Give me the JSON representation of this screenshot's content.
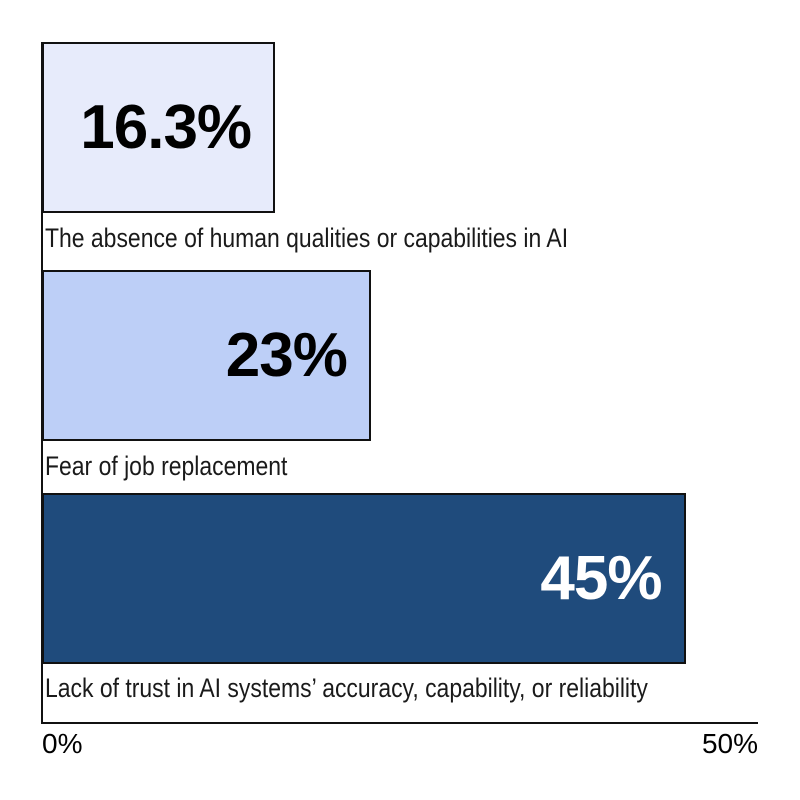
{
  "chart_data": {
    "type": "bar",
    "orientation": "horizontal",
    "title": "",
    "categories": [
      "The absence of human qualities or capabilities in AI",
      "Fear of job replacement",
      "Lack of trust in AI systems’ accuracy, capability, or reliability"
    ],
    "values": [
      16.3,
      23,
      45
    ],
    "value_labels": [
      "16.3%",
      "23%",
      "45%"
    ],
    "xlim": [
      0,
      50
    ],
    "x_tick_labels": [
      "0%",
      "50%"
    ],
    "grid": false,
    "legend": false,
    "bar_colors": [
      "#e7ebfb",
      "#bdcff7",
      "#1f4b7c"
    ],
    "bar_border_color": "#111111",
    "value_label_colors": [
      "#000000",
      "#000000",
      "#ffffff"
    ],
    "axis_color": "#111111",
    "background_color": "#ffffff"
  }
}
